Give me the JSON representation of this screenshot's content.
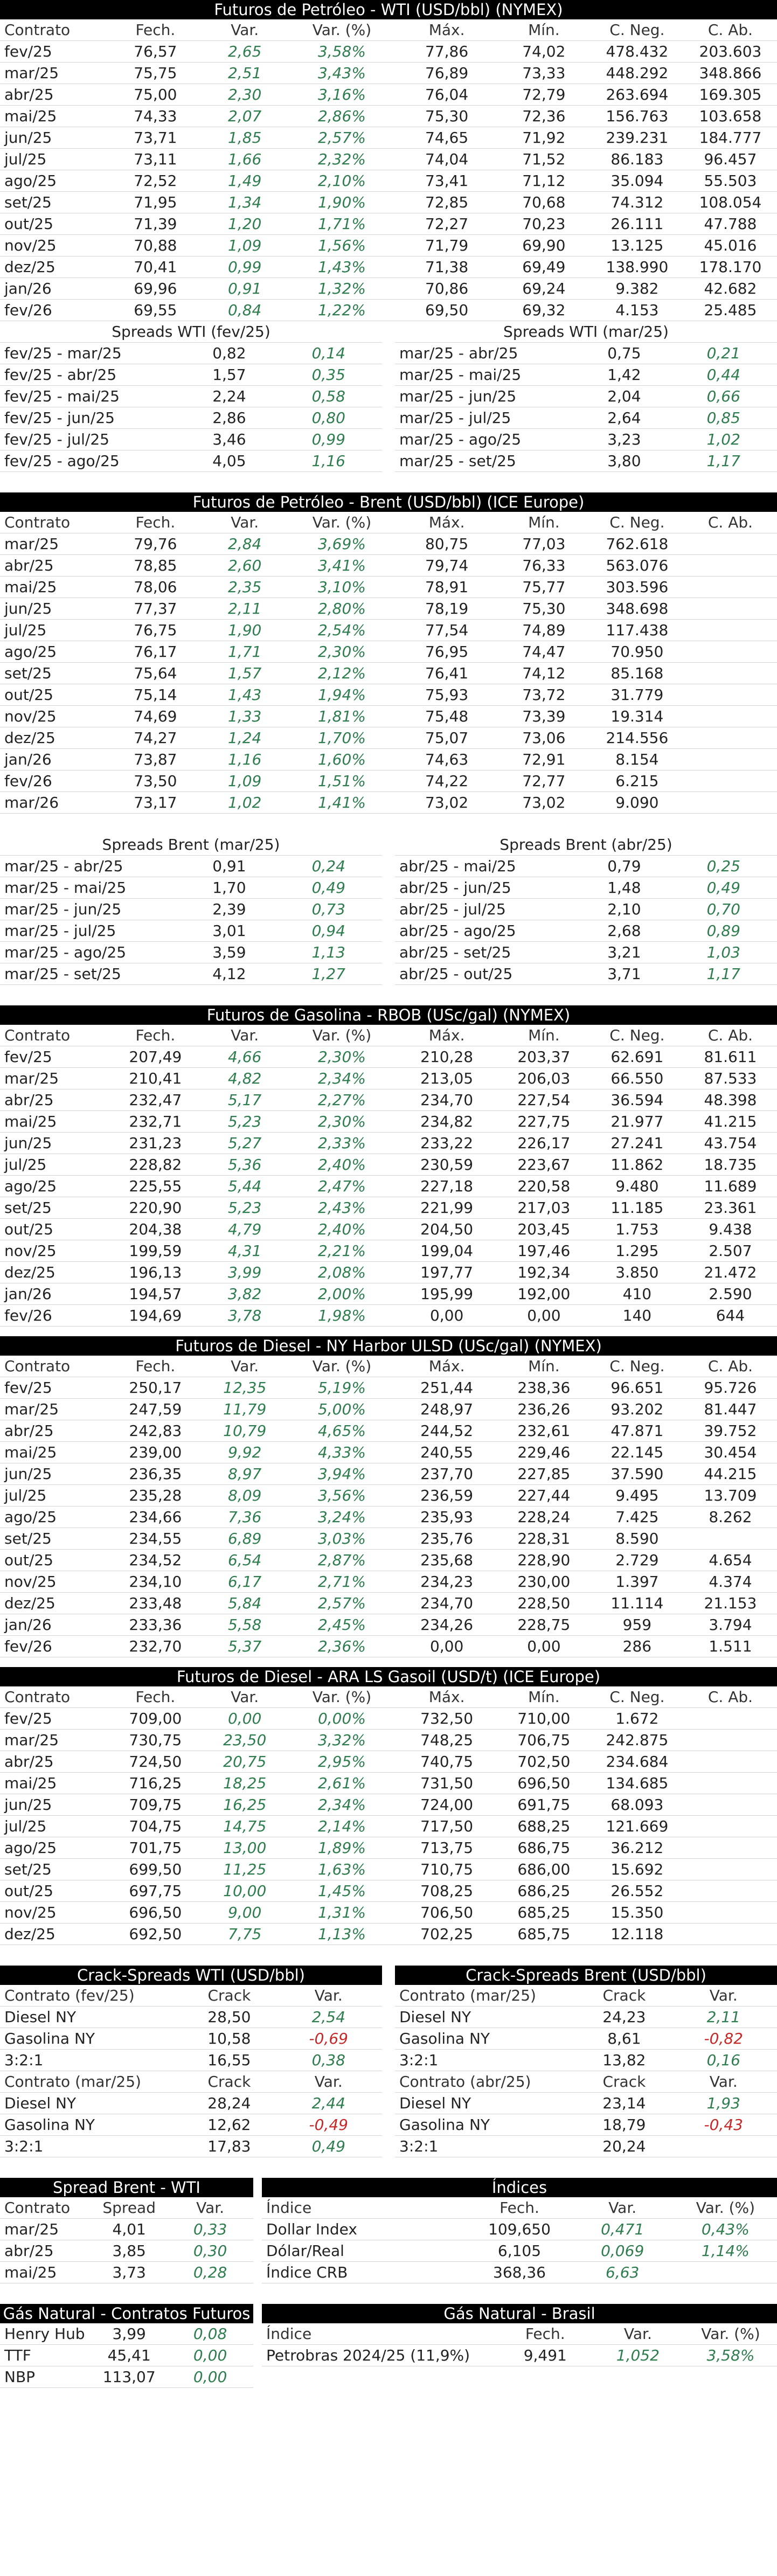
{
  "wti": {
    "title": "Futuros de Petróleo - WTI (USD/bbl) (NYMEX)",
    "headers": [
      "Contrato",
      "Fech.",
      "Var.",
      "Var. (%)",
      "Máx.",
      "Mín.",
      "C. Neg.",
      "C. Ab."
    ],
    "rows": [
      [
        "fev/25",
        "76,57",
        "2,65",
        "3,58%",
        "77,86",
        "74,02",
        "478.432",
        "203.603"
      ],
      [
        "mar/25",
        "75,75",
        "2,51",
        "3,43%",
        "76,89",
        "73,33",
        "448.292",
        "348.866"
      ],
      [
        "abr/25",
        "75,00",
        "2,30",
        "3,16%",
        "76,04",
        "72,79",
        "263.694",
        "169.305"
      ],
      [
        "mai/25",
        "74,33",
        "2,07",
        "2,86%",
        "75,30",
        "72,36",
        "156.763",
        "103.658"
      ],
      [
        "jun/25",
        "73,71",
        "1,85",
        "2,57%",
        "74,65",
        "71,92",
        "239.231",
        "184.777"
      ],
      [
        "jul/25",
        "73,11",
        "1,66",
        "2,32%",
        "74,04",
        "71,52",
        "86.183",
        "96.457"
      ],
      [
        "ago/25",
        "72,52",
        "1,49",
        "2,10%",
        "73,41",
        "71,12",
        "35.094",
        "55.503"
      ],
      [
        "set/25",
        "71,95",
        "1,34",
        "1,90%",
        "72,85",
        "70,68",
        "74.312",
        "108.054"
      ],
      [
        "out/25",
        "71,39",
        "1,20",
        "1,71%",
        "72,27",
        "70,23",
        "26.111",
        "47.788"
      ],
      [
        "nov/25",
        "70,88",
        "1,09",
        "1,56%",
        "71,79",
        "69,90",
        "13.125",
        "45.016"
      ],
      [
        "dez/25",
        "70,41",
        "0,99",
        "1,43%",
        "71,38",
        "69,49",
        "138.990",
        "178.170"
      ],
      [
        "jan/26",
        "69,96",
        "0,91",
        "1,32%",
        "70,86",
        "69,24",
        "9.382",
        "42.682"
      ],
      [
        "fev/26",
        "69,55",
        "0,84",
        "1,22%",
        "69,50",
        "69,32",
        "4.153",
        "25.485"
      ]
    ],
    "spreads_left_title": "Spreads WTI (fev/25)",
    "spreads_left": [
      [
        "fev/25 - mar/25",
        "0,82",
        "0,14"
      ],
      [
        "fev/25 - abr/25",
        "1,57",
        "0,35"
      ],
      [
        "fev/25 - mai/25",
        "2,24",
        "0,58"
      ],
      [
        "fev/25 - jun/25",
        "2,86",
        "0,80"
      ],
      [
        "fev/25 - jul/25",
        "3,46",
        "0,99"
      ],
      [
        "fev/25 - ago/25",
        "4,05",
        "1,16"
      ]
    ],
    "spreads_right_title": "Spreads WTI (mar/25)",
    "spreads_right": [
      [
        "mar/25 - abr/25",
        "0,75",
        "0,21"
      ],
      [
        "mar/25 - mai/25",
        "1,42",
        "0,44"
      ],
      [
        "mar/25 - jun/25",
        "2,04",
        "0,66"
      ],
      [
        "mar/25 - jul/25",
        "2,64",
        "0,85"
      ],
      [
        "mar/25 - ago/25",
        "3,23",
        "1,02"
      ],
      [
        "mar/25 - set/25",
        "3,80",
        "1,17"
      ]
    ]
  },
  "brent": {
    "title": "Futuros de Petróleo - Brent (USD/bbl) (ICE Europe)",
    "headers": [
      "Contrato",
      "Fech.",
      "Var.",
      "Var. (%)",
      "Máx.",
      "Mín.",
      "C. Neg.",
      "C. Ab."
    ],
    "rows": [
      [
        "mar/25",
        "79,76",
        "2,84",
        "3,69%",
        "80,75",
        "77,03",
        "762.618",
        ""
      ],
      [
        "abr/25",
        "78,85",
        "2,60",
        "3,41%",
        "79,74",
        "76,33",
        "563.076",
        ""
      ],
      [
        "mai/25",
        "78,06",
        "2,35",
        "3,10%",
        "78,91",
        "75,77",
        "303.596",
        ""
      ],
      [
        "jun/25",
        "77,37",
        "2,11",
        "2,80%",
        "78,19",
        "75,30",
        "348.698",
        ""
      ],
      [
        "jul/25",
        "76,75",
        "1,90",
        "2,54%",
        "77,54",
        "74,89",
        "117.438",
        ""
      ],
      [
        "ago/25",
        "76,17",
        "1,71",
        "2,30%",
        "76,95",
        "74,47",
        "70.950",
        ""
      ],
      [
        "set/25",
        "75,64",
        "1,57",
        "2,12%",
        "76,41",
        "74,12",
        "85.168",
        ""
      ],
      [
        "out/25",
        "75,14",
        "1,43",
        "1,94%",
        "75,93",
        "73,72",
        "31.779",
        ""
      ],
      [
        "nov/25",
        "74,69",
        "1,33",
        "1,81%",
        "75,48",
        "73,39",
        "19.314",
        ""
      ],
      [
        "dez/25",
        "74,27",
        "1,24",
        "1,70%",
        "75,07",
        "73,06",
        "214.556",
        ""
      ],
      [
        "jan/26",
        "73,87",
        "1,16",
        "1,60%",
        "74,63",
        "72,91",
        "8.154",
        ""
      ],
      [
        "fev/26",
        "73,50",
        "1,09",
        "1,51%",
        "74,22",
        "72,77",
        "6.215",
        ""
      ],
      [
        "mar/26",
        "73,17",
        "1,02",
        "1,41%",
        "73,02",
        "73,02",
        "9.090",
        ""
      ]
    ],
    "spreads_left_title": "Spreads Brent (mar/25)",
    "spreads_left": [
      [
        "mar/25 - abr/25",
        "0,91",
        "0,24"
      ],
      [
        "mar/25 - mai/25",
        "1,70",
        "0,49"
      ],
      [
        "mar/25 - jun/25",
        "2,39",
        "0,73"
      ],
      [
        "mar/25 - jul/25",
        "3,01",
        "0,94"
      ],
      [
        "mar/25 - ago/25",
        "3,59",
        "1,13"
      ],
      [
        "mar/25 - set/25",
        "4,12",
        "1,27"
      ]
    ],
    "spreads_right_title": "Spreads Brent (abr/25)",
    "spreads_right": [
      [
        "abr/25 - mai/25",
        "0,79",
        "0,25"
      ],
      [
        "abr/25 - jun/25",
        "1,48",
        "0,49"
      ],
      [
        "abr/25 - jul/25",
        "2,10",
        "0,70"
      ],
      [
        "abr/25 - ago/25",
        "2,68",
        "0,89"
      ],
      [
        "abr/25 - set/25",
        "3,21",
        "1,03"
      ],
      [
        "abr/25 - out/25",
        "3,71",
        "1,17"
      ]
    ]
  },
  "rbob": {
    "title": "Futuros de Gasolina - RBOB (USc/gal) (NYMEX)",
    "headers": [
      "Contrato",
      "Fech.",
      "Var.",
      "Var. (%)",
      "Máx.",
      "Mín.",
      "C. Neg.",
      "C. Ab."
    ],
    "rows": [
      [
        "fev/25",
        "207,49",
        "4,66",
        "2,30%",
        "210,28",
        "203,37",
        "62.691",
        "81.611"
      ],
      [
        "mar/25",
        "210,41",
        "4,82",
        "2,34%",
        "213,05",
        "206,03",
        "66.550",
        "87.533"
      ],
      [
        "abr/25",
        "232,47",
        "5,17",
        "2,27%",
        "234,70",
        "227,54",
        "36.594",
        "48.398"
      ],
      [
        "mai/25",
        "232,71",
        "5,23",
        "2,30%",
        "234,82",
        "227,75",
        "21.977",
        "41.215"
      ],
      [
        "jun/25",
        "231,23",
        "5,27",
        "2,33%",
        "233,22",
        "226,17",
        "27.241",
        "43.754"
      ],
      [
        "jul/25",
        "228,82",
        "5,36",
        "2,40%",
        "230,59",
        "223,67",
        "11.862",
        "18.735"
      ],
      [
        "ago/25",
        "225,55",
        "5,44",
        "2,47%",
        "227,18",
        "220,58",
        "9.480",
        "11.689"
      ],
      [
        "set/25",
        "220,90",
        "5,23",
        "2,43%",
        "221,99",
        "217,03",
        "11.185",
        "23.361"
      ],
      [
        "out/25",
        "204,38",
        "4,79",
        "2,40%",
        "204,50",
        "203,45",
        "1.753",
        "9.438"
      ],
      [
        "nov/25",
        "199,59",
        "4,31",
        "2,21%",
        "199,04",
        "197,46",
        "1.295",
        "2.507"
      ],
      [
        "dez/25",
        "196,13",
        "3,99",
        "2,08%",
        "197,77",
        "192,34",
        "3.850",
        "21.472"
      ],
      [
        "jan/26",
        "194,57",
        "3,82",
        "2,00%",
        "195,99",
        "192,00",
        "410",
        "2.590"
      ],
      [
        "fev/26",
        "194,69",
        "3,78",
        "1,98%",
        "0,00",
        "0,00",
        "140",
        "644"
      ]
    ]
  },
  "ulsd": {
    "title": "Futuros de Diesel - NY Harbor ULSD (USc/gal) (NYMEX)",
    "headers": [
      "Contrato",
      "Fech.",
      "Var.",
      "Var. (%)",
      "Máx.",
      "Mín.",
      "C. Neg.",
      "C. Ab."
    ],
    "rows": [
      [
        "fev/25",
        "250,17",
        "12,35",
        "5,19%",
        "251,44",
        "238,36",
        "96.651",
        "95.726"
      ],
      [
        "mar/25",
        "247,59",
        "11,79",
        "5,00%",
        "248,97",
        "236,26",
        "93.202",
        "81.447"
      ],
      [
        "abr/25",
        "242,83",
        "10,79",
        "4,65%",
        "244,52",
        "232,61",
        "47.871",
        "39.752"
      ],
      [
        "mai/25",
        "239,00",
        "9,92",
        "4,33%",
        "240,55",
        "229,46",
        "22.145",
        "30.454"
      ],
      [
        "jun/25",
        "236,35",
        "8,97",
        "3,94%",
        "237,70",
        "227,85",
        "37.590",
        "44.215"
      ],
      [
        "jul/25",
        "235,28",
        "8,09",
        "3,56%",
        "236,59",
        "227,44",
        "9.495",
        "13.709"
      ],
      [
        "ago/25",
        "234,66",
        "7,36",
        "3,24%",
        "235,93",
        "228,24",
        "7.425",
        "8.262"
      ],
      [
        "set/25",
        "234,55",
        "6,89",
        "3,03%",
        "235,76",
        "228,31",
        "8.590",
        ""
      ],
      [
        "out/25",
        "234,52",
        "6,54",
        "2,87%",
        "235,68",
        "228,90",
        "2.729",
        "4.654"
      ],
      [
        "nov/25",
        "234,10",
        "6,17",
        "2,71%",
        "234,23",
        "230,00",
        "1.397",
        "4.374"
      ],
      [
        "dez/25",
        "233,48",
        "5,84",
        "2,57%",
        "234,70",
        "228,50",
        "11.114",
        "21.153"
      ],
      [
        "jan/26",
        "233,36",
        "5,58",
        "2,45%",
        "234,26",
        "228,75",
        "959",
        "3.794"
      ],
      [
        "fev/26",
        "232,70",
        "5,37",
        "2,36%",
        "0,00",
        "0,00",
        "286",
        "1.511"
      ]
    ]
  },
  "gasoil": {
    "title": "Futuros de Diesel - ARA LS Gasoil (USD/t) (ICE Europe)",
    "headers": [
      "Contrato",
      "Fech.",
      "Var.",
      "Var. (%)",
      "Máx.",
      "Mín.",
      "C. Neg.",
      "C. Ab."
    ],
    "rows": [
      [
        "fev/25",
        "709,00",
        "0,00",
        "0,00%",
        "732,50",
        "710,00",
        "1.672",
        ""
      ],
      [
        "mar/25",
        "730,75",
        "23,50",
        "3,32%",
        "748,25",
        "706,75",
        "242.875",
        ""
      ],
      [
        "abr/25",
        "724,50",
        "20,75",
        "2,95%",
        "740,75",
        "702,50",
        "234.684",
        ""
      ],
      [
        "mai/25",
        "716,25",
        "18,25",
        "2,61%",
        "731,50",
        "696,50",
        "134.685",
        ""
      ],
      [
        "jun/25",
        "709,75",
        "16,25",
        "2,34%",
        "724,00",
        "691,75",
        "68.093",
        ""
      ],
      [
        "jul/25",
        "704,75",
        "14,75",
        "2,14%",
        "717,50",
        "688,25",
        "121.669",
        ""
      ],
      [
        "ago/25",
        "701,75",
        "13,00",
        "1,89%",
        "713,75",
        "686,75",
        "36.212",
        ""
      ],
      [
        "set/25",
        "699,50",
        "11,25",
        "1,63%",
        "710,75",
        "686,00",
        "15.692",
        ""
      ],
      [
        "out/25",
        "697,75",
        "10,00",
        "1,45%",
        "708,25",
        "686,25",
        "26.552",
        ""
      ],
      [
        "nov/25",
        "696,50",
        "9,00",
        "1,31%",
        "706,50",
        "685,25",
        "15.350",
        ""
      ],
      [
        "dez/25",
        "692,50",
        "7,75",
        "1,13%",
        "702,25",
        "685,75",
        "12.118",
        ""
      ]
    ]
  },
  "crack_wti": {
    "title": "Crack-Spreads WTI (USD/bbl)",
    "block1_headers": [
      "Contrato (fev/25)",
      "Crack",
      "Var."
    ],
    "block1": [
      [
        "Diesel NY",
        "28,50",
        "2,54"
      ],
      [
        "Gasolina NY",
        "10,58",
        "-0,69"
      ],
      [
        "3:2:1",
        "16,55",
        "0,38"
      ]
    ],
    "block2_headers": [
      "Contrato (mar/25)",
      "Crack",
      "Var."
    ],
    "block2": [
      [
        "Diesel NY",
        "28,24",
        "2,44"
      ],
      [
        "Gasolina NY",
        "12,62",
        "-0,49"
      ],
      [
        "3:2:1",
        "17,83",
        "0,49"
      ]
    ]
  },
  "crack_brent": {
    "title": "Crack-Spreads Brent (USD/bbl)",
    "block1_headers": [
      "Contrato (mar/25)",
      "Crack",
      "Var."
    ],
    "block1": [
      [
        "Diesel NY",
        "24,23",
        "2,11"
      ],
      [
        "Gasolina NY",
        "8,61",
        "-0,82"
      ],
      [
        "3:2:1",
        "13,82",
        "0,16"
      ]
    ],
    "block2_headers": [
      "Contrato (abr/25)",
      "Crack",
      "Var."
    ],
    "block2": [
      [
        "Diesel NY",
        "23,14",
        "1,93"
      ],
      [
        "Gasolina NY",
        "18,79",
        "-0,43"
      ],
      [
        "3:2:1",
        "20,24",
        ""
      ]
    ]
  },
  "spread_bw": {
    "title": "Spread Brent - WTI",
    "headers": [
      "Contrato",
      "Spread",
      "Var."
    ],
    "rows": [
      [
        "mar/25",
        "4,01",
        "0,33"
      ],
      [
        "abr/25",
        "3,85",
        "0,30"
      ],
      [
        "mai/25",
        "3,73",
        "0,28"
      ]
    ]
  },
  "indices": {
    "title": "Índices",
    "headers": [
      "Índice",
      "Fech.",
      "Var.",
      "Var. (%)"
    ],
    "rows": [
      [
        "Dollar Index",
        "109,650",
        "0,471",
        "0,43%"
      ],
      [
        "Dólar/Real",
        "6,105",
        "0,069",
        "1,14%"
      ],
      [
        "Índice CRB",
        "368,36",
        "6,63",
        ""
      ]
    ]
  },
  "gas_nat": {
    "title": "Gás Natural - Contratos Futuros",
    "rows": [
      [
        "Henry Hub",
        "3,99",
        "0,08"
      ],
      [
        "TTF",
        "45,41",
        "0,00"
      ],
      [
        "NBP",
        "113,07",
        "0,00"
      ]
    ]
  },
  "gas_br": {
    "title": "Gás Natural - Brasil",
    "headers": [
      "Índice",
      "Fech.",
      "Var.",
      "Var. (%)"
    ],
    "rows": [
      [
        "Petrobras 2024/25 (11,9%)",
        "9,491",
        "1,052",
        "3,58%"
      ]
    ]
  },
  "colors": {
    "positive": "#2e7d4f",
    "negative": "#c62828",
    "header_bg": "#000000"
  }
}
